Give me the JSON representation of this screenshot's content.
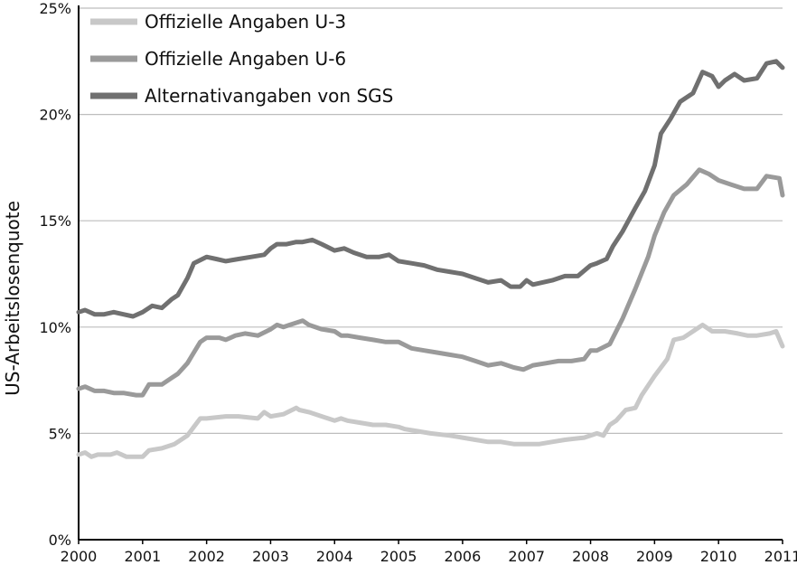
{
  "chart_data": {
    "type": "line",
    "ylabel": "US-Arbeitslosenquote",
    "xlim": [
      2000,
      2011
    ],
    "ylim": [
      0,
      25
    ],
    "x_ticks": [
      "2000",
      "2001",
      "2002",
      "2003",
      "2004",
      "2005",
      "2006",
      "2007",
      "2008",
      "2009",
      "2010",
      "2011"
    ],
    "y_ticks": [
      "0%",
      "5%",
      "10%",
      "15%",
      "20%",
      "25%"
    ],
    "grid": "horizontal",
    "legend_position": "top-left",
    "series": [
      {
        "name": "Offizielle Angaben U-3",
        "color": "#c8c8c8",
        "x": [
          2000.0,
          2000.1,
          2000.2,
          2000.3,
          2000.5,
          2000.6,
          2000.75,
          2001.0,
          2001.1,
          2001.3,
          2001.5,
          2001.7,
          2001.8,
          2001.9,
          2002.0,
          2002.3,
          2002.5,
          2002.8,
          2002.9,
          2003.0,
          2003.2,
          2003.4,
          2003.45,
          2003.6,
          2003.8,
          2004.0,
          2004.1,
          2004.2,
          2004.4,
          2004.6,
          2004.8,
          2005.0,
          2005.1,
          2005.3,
          2005.5,
          2005.8,
          2006.0,
          2006.2,
          2006.4,
          2006.6,
          2006.8,
          2006.9,
          2007.0,
          2007.2,
          2007.4,
          2007.6,
          2007.9,
          2008.1,
          2008.2,
          2008.3,
          2008.4,
          2008.55,
          2008.7,
          2008.8,
          2009.0,
          2009.2,
          2009.3,
          2009.45,
          2009.6,
          2009.75,
          2009.9,
          2010.1,
          2010.3,
          2010.45,
          2010.6,
          2010.8,
          2010.9,
          2011.0
        ],
        "values": [
          4.0,
          4.1,
          3.9,
          4.0,
          4.0,
          4.1,
          3.9,
          3.9,
          4.2,
          4.3,
          4.5,
          4.9,
          5.3,
          5.7,
          5.7,
          5.8,
          5.8,
          5.7,
          6.0,
          5.8,
          5.9,
          6.2,
          6.1,
          6.0,
          5.8,
          5.6,
          5.7,
          5.6,
          5.5,
          5.4,
          5.4,
          5.3,
          5.2,
          5.1,
          5.0,
          4.9,
          4.8,
          4.7,
          4.6,
          4.6,
          4.5,
          4.5,
          4.5,
          4.5,
          4.6,
          4.7,
          4.8,
          5.0,
          4.9,
          5.4,
          5.6,
          6.1,
          6.2,
          6.8,
          7.7,
          8.5,
          9.4,
          9.5,
          9.8,
          10.1,
          9.8,
          9.8,
          9.7,
          9.6,
          9.6,
          9.7,
          9.8,
          9.1
        ]
      },
      {
        "name": "Offizielle Angaben U-6",
        "color": "#9a9a9a",
        "x": [
          2000.0,
          2000.1,
          2000.25,
          2000.4,
          2000.55,
          2000.7,
          2000.9,
          2001.0,
          2001.1,
          2001.3,
          2001.45,
          2001.55,
          2001.7,
          2001.8,
          2001.9,
          2002.0,
          2002.2,
          2002.3,
          2002.45,
          2002.6,
          2002.8,
          2003.0,
          2003.1,
          2003.2,
          2003.3,
          2003.5,
          2003.6,
          2003.8,
          2004.0,
          2004.1,
          2004.2,
          2004.4,
          2004.6,
          2004.8,
          2005.0,
          2005.2,
          2005.4,
          2005.6,
          2005.8,
          2006.0,
          2006.2,
          2006.4,
          2006.6,
          2006.8,
          2006.95,
          2007.1,
          2007.3,
          2007.5,
          2007.7,
          2007.9,
          2008.0,
          2008.1,
          2008.3,
          2008.5,
          2008.7,
          2008.9,
          2009.0,
          2009.15,
          2009.3,
          2009.5,
          2009.7,
          2009.85,
          2010.0,
          2010.2,
          2010.4,
          2010.6,
          2010.75,
          2010.95,
          2011.0
        ],
        "values": [
          7.1,
          7.2,
          7.0,
          7.0,
          6.9,
          6.9,
          6.8,
          6.8,
          7.3,
          7.3,
          7.6,
          7.8,
          8.3,
          8.8,
          9.3,
          9.5,
          9.5,
          9.4,
          9.6,
          9.7,
          9.6,
          9.9,
          10.1,
          10.0,
          10.1,
          10.3,
          10.1,
          9.9,
          9.8,
          9.6,
          9.6,
          9.5,
          9.4,
          9.3,
          9.3,
          9.0,
          8.9,
          8.8,
          8.7,
          8.6,
          8.4,
          8.2,
          8.3,
          8.1,
          8.0,
          8.2,
          8.3,
          8.4,
          8.4,
          8.5,
          8.9,
          8.9,
          9.2,
          10.4,
          11.8,
          13.3,
          14.3,
          15.4,
          16.2,
          16.7,
          17.4,
          17.2,
          16.9,
          16.7,
          16.5,
          16.5,
          17.1,
          17.0,
          16.2
        ]
      },
      {
        "name": "Alternativangaben von SGS",
        "color": "#707070",
        "x": [
          2000.0,
          2000.1,
          2000.25,
          2000.4,
          2000.55,
          2000.7,
          2000.85,
          2001.0,
          2001.15,
          2001.3,
          2001.45,
          2001.55,
          2001.7,
          2001.8,
          2002.0,
          2002.15,
          2002.3,
          2002.5,
          2002.7,
          2002.9,
          2003.0,
          2003.1,
          2003.25,
          2003.4,
          2003.5,
          2003.65,
          2003.8,
          2004.0,
          2004.15,
          2004.3,
          2004.5,
          2004.7,
          2004.85,
          2005.0,
          2005.2,
          2005.4,
          2005.6,
          2005.8,
          2006.0,
          2006.2,
          2006.4,
          2006.6,
          2006.75,
          2006.9,
          2007.0,
          2007.1,
          2007.25,
          2007.4,
          2007.6,
          2007.8,
          2008.0,
          2008.1,
          2008.25,
          2008.35,
          2008.5,
          2008.7,
          2008.85,
          2009.0,
          2009.1,
          2009.25,
          2009.4,
          2009.6,
          2009.75,
          2009.9,
          2010.0,
          2010.1,
          2010.25,
          2010.4,
          2010.6,
          2010.75,
          2010.9,
          2011.0
        ],
        "values": [
          10.7,
          10.8,
          10.6,
          10.6,
          10.7,
          10.6,
          10.5,
          10.7,
          11.0,
          10.9,
          11.3,
          11.5,
          12.3,
          13.0,
          13.3,
          13.2,
          13.1,
          13.2,
          13.3,
          13.4,
          13.7,
          13.9,
          13.9,
          14.0,
          14.0,
          14.1,
          13.9,
          13.6,
          13.7,
          13.5,
          13.3,
          13.3,
          13.4,
          13.1,
          13.0,
          12.9,
          12.7,
          12.6,
          12.5,
          12.3,
          12.1,
          12.2,
          11.9,
          11.9,
          12.2,
          12.0,
          12.1,
          12.2,
          12.4,
          12.4,
          12.9,
          13.0,
          13.2,
          13.8,
          14.5,
          15.6,
          16.4,
          17.6,
          19.1,
          19.8,
          20.6,
          21.0,
          22.0,
          21.8,
          21.3,
          21.6,
          21.9,
          21.6,
          21.7,
          22.4,
          22.5,
          22.2
        ]
      }
    ]
  }
}
